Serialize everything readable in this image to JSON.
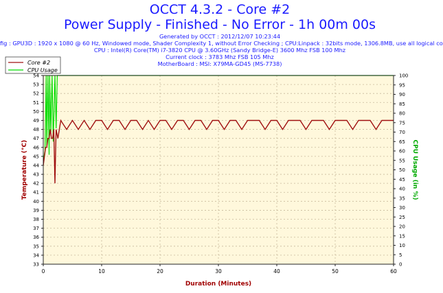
{
  "header": {
    "title": "OCCT 4.3.2 - Core #2",
    "subtitle": "Power Supply - Finished - No Error - 1h 00m 00s",
    "info_lines": [
      "Generated by OCCT : 2012/12/07 10:23:44",
      "fig : GPU3D : 1920 x 1080 @ 60 Hz, Windowed mode, Shader Complexity 1, without Error Checking ; CPU:Linpack : 32bits mode, 1306.8MB, use all logical co",
      "CPU : Intel(R) Core(TM) i7-3820 CPU @ 3.60GHz (Sandy Bridge-E) 3600 Mhz FSB 100 Mhz",
      "Current clock : 3783 Mhz FSB 105 Mhz",
      "MotherBoard : MSI: X79MA-GD45 (MS-7738)"
    ]
  },
  "colors": {
    "title": "#1a1aff",
    "plot_background": "#fff8dc",
    "grid": "#c8b89a",
    "temperature": "#a01010",
    "cpu_usage": "#00dd00",
    "left_axis": "#a00000",
    "right_axis": "#00aa00"
  },
  "chart_data": {
    "type": "line",
    "title": "OCCT 4.3.2 - Core #2",
    "xlabel": "Duration (Minutes)",
    "ylabel": "Temperature (°C)",
    "y2label": "CPU Usage (in %)",
    "xlim": [
      0,
      60
    ],
    "ylim": [
      33,
      54
    ],
    "y2lim": [
      0,
      100
    ],
    "x_ticks": [
      0,
      10,
      20,
      30,
      40,
      50,
      60
    ],
    "y_ticks": [
      33,
      34,
      35,
      36,
      37,
      38,
      39,
      40,
      41,
      42,
      43,
      44,
      45,
      46,
      47,
      48,
      49,
      50,
      51,
      52,
      53,
      54
    ],
    "y2_ticks": [
      0,
      5,
      10,
      15,
      20,
      25,
      30,
      35,
      40,
      45,
      50,
      55,
      60,
      65,
      70,
      75,
      80,
      85,
      90,
      95,
      100
    ],
    "grid": true,
    "legend_position": "top-left",
    "series": [
      {
        "name": "Core #2",
        "axis": "left",
        "x": [
          0,
          0.2,
          0.4,
          0.6,
          0.8,
          1.0,
          1.2,
          1.4,
          1.6,
          1.8,
          2.0,
          2.2,
          2.5,
          3.0,
          4,
          5,
          6,
          7,
          8,
          9,
          10,
          11,
          12,
          13,
          14,
          15,
          16,
          17,
          18,
          19,
          20,
          21,
          22,
          23,
          24,
          25,
          26,
          27,
          28,
          29,
          30,
          31,
          32,
          33,
          34,
          35,
          36,
          37,
          38,
          39,
          40,
          41,
          42,
          43,
          44,
          45,
          46,
          47,
          48,
          49,
          50,
          51,
          52,
          53,
          54,
          55,
          56,
          57,
          58,
          59,
          60
        ],
        "y": [
          44,
          45,
          46,
          46,
          47,
          47,
          48,
          47,
          47,
          48,
          42,
          48,
          47,
          49,
          48,
          49,
          48,
          49,
          48,
          49,
          49,
          48,
          49,
          49,
          48,
          49,
          49,
          48,
          49,
          48,
          49,
          49,
          48,
          49,
          49,
          48,
          49,
          49,
          48,
          49,
          49,
          48,
          49,
          49,
          48,
          49,
          49,
          49,
          48,
          49,
          49,
          48,
          49,
          49,
          49,
          48,
          49,
          49,
          49,
          48,
          49,
          49,
          49,
          48,
          49,
          49,
          49,
          48,
          49,
          49,
          49
        ]
      },
      {
        "name": "CPU Usage",
        "axis": "right",
        "x": [
          0,
          0.3,
          0.5,
          0.6,
          0.8,
          1.0,
          1.1,
          1.3,
          1.5,
          1.7,
          2.0,
          2.2,
          2.4,
          60
        ],
        "y": [
          55,
          60,
          100,
          62,
          100,
          58,
          100,
          70,
          100,
          65,
          100,
          72,
          100,
          100
        ]
      }
    ]
  }
}
